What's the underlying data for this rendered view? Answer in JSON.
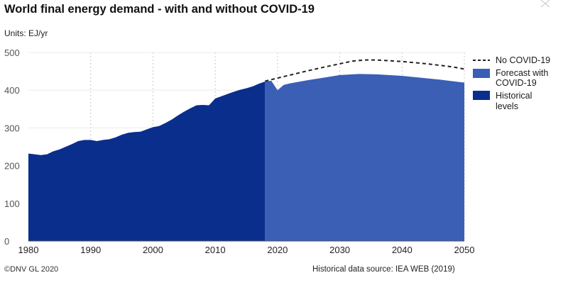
{
  "header": {
    "title": "World final energy demand - with and without COVID-19",
    "units": "Units: EJ/yr"
  },
  "footer": {
    "copyright": "©DNV GL 2020",
    "source": "Historical data source: IEA WEB (2019)"
  },
  "colors": {
    "historical": "#0a2e8c",
    "forecast": "#3a5fb5",
    "no_covid_line": "#222222",
    "grid": "#c8c8c8"
  },
  "chart_data": {
    "type": "area",
    "title": "World final energy demand - with and without COVID-19",
    "xlabel": "",
    "ylabel": "EJ/yr",
    "xlim": [
      1980,
      2050
    ],
    "ylim": [
      0,
      500
    ],
    "x_ticks": [
      "1980",
      "1990",
      "2000",
      "2010",
      "2020",
      "2030",
      "2040",
      "2050"
    ],
    "y_ticks": [
      "0",
      "100",
      "200",
      "300",
      "400",
      "500"
    ],
    "x_tick_values": [
      1980,
      1990,
      2000,
      2010,
      2020,
      2030,
      2040,
      2050
    ],
    "y_tick_values": [
      0,
      100,
      200,
      300,
      400,
      500
    ],
    "grid": "vertical dotted",
    "legend_position": "right",
    "series": [
      {
        "name": "Historical levels",
        "legend": [
          "Historical",
          "levels"
        ],
        "style": "area",
        "x": [
          1980,
          1981,
          1982,
          1983,
          1984,
          1985,
          1986,
          1987,
          1988,
          1989,
          1990,
          1991,
          1992,
          1993,
          1994,
          1995,
          1996,
          1997,
          1998,
          1999,
          2000,
          2001,
          2002,
          2003,
          2004,
          2005,
          2006,
          2007,
          2008,
          2009,
          2010,
          2011,
          2012,
          2013,
          2014,
          2015,
          2016,
          2017,
          2018
        ],
        "values": [
          232,
          230,
          228,
          230,
          238,
          243,
          250,
          257,
          265,
          268,
          268,
          265,
          268,
          270,
          275,
          282,
          287,
          289,
          290,
          296,
          302,
          305,
          313,
          322,
          333,
          343,
          352,
          360,
          361,
          360,
          378,
          384,
          390,
          396,
          401,
          405,
          410,
          417,
          423
        ]
      },
      {
        "name": "Forecast with COVID-19",
        "legend": [
          "Forecast with",
          "COVID-19"
        ],
        "style": "area",
        "x": [
          2018,
          2019,
          2020,
          2021,
          2022,
          2023,
          2025,
          2027,
          2030,
          2033,
          2036,
          2040,
          2043,
          2046,
          2050
        ],
        "values": [
          423,
          425,
          400,
          414,
          418,
          421,
          427,
          432,
          440,
          443,
          442,
          438,
          433,
          428,
          420
        ]
      },
      {
        "name": "No COVID-19",
        "legend": [
          "No COVID-19"
        ],
        "style": "dashed-line",
        "x": [
          2018,
          2020,
          2022,
          2025,
          2028,
          2030,
          2032,
          2034,
          2036,
          2040,
          2044,
          2048,
          2050
        ],
        "values": [
          424,
          432,
          440,
          452,
          463,
          470,
          477,
          480,
          480,
          476,
          470,
          462,
          456
        ]
      }
    ]
  }
}
